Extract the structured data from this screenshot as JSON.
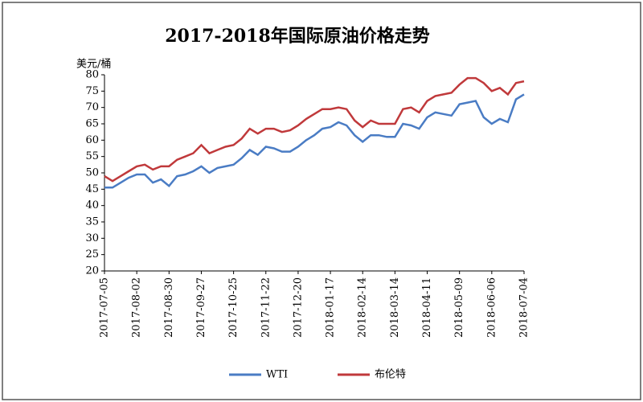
{
  "chart_data": {
    "type": "line",
    "title": "2017-2018年国际原油价格走势",
    "y_label": "美元/桶",
    "x": [
      "2017-07-05",
      "2017-07-12",
      "2017-07-19",
      "2017-07-26",
      "2017-08-02",
      "2017-08-09",
      "2017-08-16",
      "2017-08-23",
      "2017-08-30",
      "2017-09-06",
      "2017-09-13",
      "2017-09-20",
      "2017-09-27",
      "2017-10-04",
      "2017-10-11",
      "2017-10-18",
      "2017-10-25",
      "2017-11-01",
      "2017-11-08",
      "2017-11-15",
      "2017-11-22",
      "2017-11-29",
      "2017-12-06",
      "2017-12-13",
      "2017-12-20",
      "2017-12-27",
      "2018-01-03",
      "2018-01-10",
      "2018-01-17",
      "2018-01-24",
      "2018-01-31",
      "2018-02-07",
      "2018-02-14",
      "2018-02-21",
      "2018-02-28",
      "2018-03-07",
      "2018-03-14",
      "2018-03-21",
      "2018-03-28",
      "2018-04-04",
      "2018-04-11",
      "2018-04-18",
      "2018-04-25",
      "2018-05-02",
      "2018-05-09",
      "2018-05-16",
      "2018-05-23",
      "2018-05-30",
      "2018-06-06",
      "2018-06-13",
      "2018-06-20",
      "2018-06-27",
      "2018-07-04"
    ],
    "series": [
      {
        "name": "WTI",
        "color": "#4a7cc4",
        "values": [
          45.5,
          45.5,
          47,
          48.5,
          49.5,
          49.5,
          47,
          48,
          46,
          49,
          49.5,
          50.5,
          52,
          50,
          51.5,
          52,
          52.5,
          54.5,
          57,
          55.5,
          58,
          57.5,
          56.5,
          56.5,
          58,
          60,
          61.5,
          63.5,
          64,
          65.5,
          64.5,
          61.5,
          59.5,
          61.5,
          61.5,
          61,
          61,
          65,
          64.5,
          63.5,
          67,
          68.5,
          68,
          67.5,
          71,
          71.5,
          72,
          67,
          65,
          66.5,
          65.5,
          72.5,
          74
        ]
      },
      {
        "name": "布伦特",
        "color": "#c0393b",
        "values": [
          49,
          47.5,
          49,
          50.5,
          52,
          52.5,
          51,
          52,
          52,
          54,
          55,
          56,
          58.5,
          56,
          57,
          58,
          58.5,
          60.5,
          63.5,
          62,
          63.5,
          63.5,
          62.5,
          63,
          64.5,
          66.5,
          68,
          69.5,
          69.5,
          70,
          69.5,
          66,
          64,
          66,
          65,
          65,
          65,
          69.5,
          70,
          68.5,
          72,
          73.5,
          74,
          74.5,
          77,
          79,
          79,
          77.5,
          75,
          76,
          74,
          77.5,
          78
        ]
      }
    ],
    "xticks": [
      "2017-07-05",
      "2017-08-02",
      "2017-08-30",
      "2017-09-27",
      "2017-10-25",
      "2017-11-22",
      "2017-12-20",
      "2018-01-17",
      "2018-02-14",
      "2018-03-14",
      "2018-04-11",
      "2018-05-09",
      "2018-06-06",
      "2018-07-04"
    ],
    "ylim": [
      20,
      80
    ],
    "yticks": [
      20,
      25,
      30,
      35,
      40,
      45,
      50,
      55,
      60,
      65,
      70,
      75,
      80
    ],
    "grid": false,
    "legend": "bottom"
  }
}
